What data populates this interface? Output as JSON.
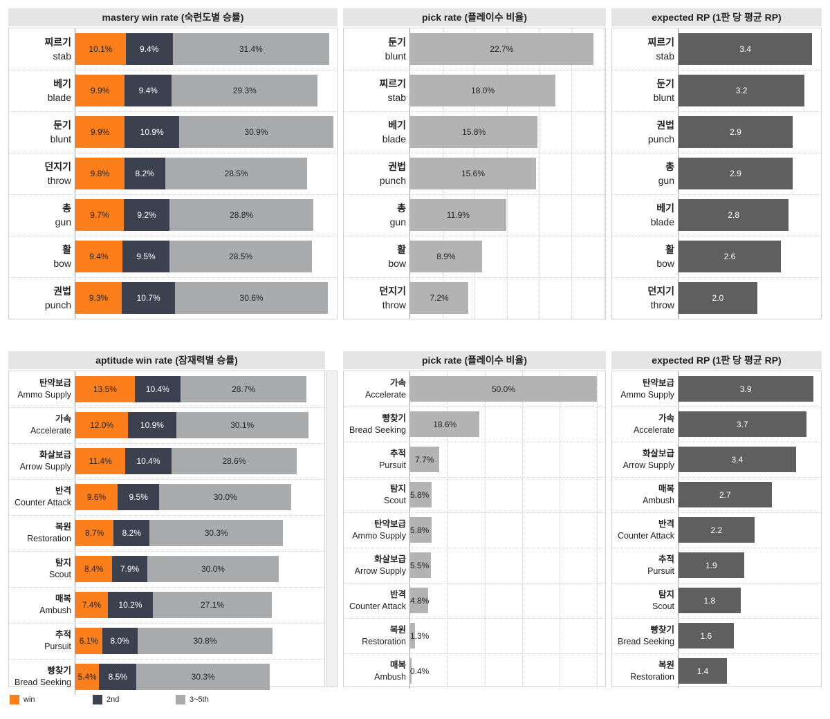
{
  "colors": {
    "win": "#fd7f1c",
    "second": "#3c4150",
    "rest": "#a9abad",
    "pick": "#b3b3b3",
    "rp": "#5f5f5f"
  },
  "legend": [
    {
      "label": "win",
      "color": "#fd7f1c"
    },
    {
      "label": "2nd",
      "color": "#3c4150"
    },
    {
      "label": "3~5th",
      "color": "#a9abad"
    }
  ],
  "panels": {
    "mastery_win": {
      "title": "mastery win rate (숙련도별 승률)",
      "rows": [
        {
          "ko": "찌르기",
          "en": "stab",
          "label_win": "10.1%",
          "label_second": "9.4%",
          "label_rest": "31.4%"
        },
        {
          "ko": "베기",
          "en": "blade",
          "label_win": "9.9%",
          "label_second": "9.4%",
          "label_rest": "29.3%"
        },
        {
          "ko": "둔기",
          "en": "blunt",
          "label_win": "9.9%",
          "label_second": "10.9%",
          "label_rest": "30.9%"
        },
        {
          "ko": "던지기",
          "en": "throw",
          "label_win": "9.8%",
          "label_second": "8.2%",
          "label_rest": "28.5%"
        },
        {
          "ko": "총",
          "en": "gun",
          "label_win": "9.7%",
          "label_second": "9.2%",
          "label_rest": "28.8%"
        },
        {
          "ko": "활",
          "en": "bow",
          "label_win": "9.4%",
          "label_second": "9.5%",
          "label_rest": "28.5%"
        },
        {
          "ko": "권법",
          "en": "punch",
          "label_win": "9.3%",
          "label_second": "10.7%",
          "label_rest": "30.6%"
        }
      ]
    },
    "mastery_pick": {
      "title": "pick rate (플레이수 비율)",
      "rows": [
        {
          "ko": "둔기",
          "en": "blunt",
          "label": "22.7%"
        },
        {
          "ko": "찌르기",
          "en": "stab",
          "label": "18.0%"
        },
        {
          "ko": "베기",
          "en": "blade",
          "label": "15.8%"
        },
        {
          "ko": "권법",
          "en": "punch",
          "label": "15.6%"
        },
        {
          "ko": "총",
          "en": "gun",
          "label": "11.9%"
        },
        {
          "ko": "활",
          "en": "bow",
          "label": "8.9%"
        },
        {
          "ko": "던지기",
          "en": "throw",
          "label": "7.2%"
        }
      ]
    },
    "mastery_rp": {
      "title": "expected RP (1판 당 평균 RP)",
      "rows": [
        {
          "ko": "찌르기",
          "en": "stab",
          "label": "3.4"
        },
        {
          "ko": "둔기",
          "en": "blunt",
          "label": "3.2"
        },
        {
          "ko": "권법",
          "en": "punch",
          "label": "2.9"
        },
        {
          "ko": "총",
          "en": "gun",
          "label": "2.9"
        },
        {
          "ko": "베기",
          "en": "blade",
          "label": "2.8"
        },
        {
          "ko": "활",
          "en": "bow",
          "label": "2.6"
        },
        {
          "ko": "던지기",
          "en": "throw",
          "label": "2.0"
        }
      ]
    },
    "aptitude_win": {
      "title": "aptitude win rate (잠재력별 승률)",
      "rows": [
        {
          "ko": "탄약보급",
          "en": "Ammo Supply",
          "label_win": "13.5%",
          "label_second": "10.4%",
          "label_rest": "28.7%"
        },
        {
          "ko": "가속",
          "en": "Accelerate",
          "label_win": "12.0%",
          "label_second": "10.9%",
          "label_rest": "30.1%"
        },
        {
          "ko": "화살보급",
          "en": "Arrow Supply",
          "label_win": "11.4%",
          "label_second": "10.4%",
          "label_rest": "28.6%"
        },
        {
          "ko": "반격",
          "en": "Counter Attack",
          "label_win": "9.6%",
          "label_second": "9.5%",
          "label_rest": "30.0%"
        },
        {
          "ko": "복원",
          "en": "Restoration",
          "label_win": "8.7%",
          "label_second": "8.2%",
          "label_rest": "30.3%"
        },
        {
          "ko": "탐지",
          "en": "Scout",
          "label_win": "8.4%",
          "label_second": "7.9%",
          "label_rest": "30.0%"
        },
        {
          "ko": "매복",
          "en": "Ambush",
          "label_win": "7.4%",
          "label_second": "10.2%",
          "label_rest": "27.1%"
        },
        {
          "ko": "추적",
          "en": "Pursuit",
          "label_win": "6.1%",
          "label_second": "8.0%",
          "label_rest": "30.8%"
        },
        {
          "ko": "빵찾기",
          "en": "Bread Seeking",
          "label_win": "5.4%",
          "label_second": "8.5%",
          "label_rest": "30.3%"
        }
      ]
    },
    "aptitude_pick": {
      "title": "pick rate (플레이수 비율)",
      "rows": [
        {
          "ko": "가속",
          "en": "Accelerate",
          "label": "50.0%"
        },
        {
          "ko": "빵찾기",
          "en": "Bread Seeking",
          "label": "18.6%"
        },
        {
          "ko": "추적",
          "en": "Pursuit",
          "label": "7.7%"
        },
        {
          "ko": "탐지",
          "en": "Scout",
          "label": "5.8%"
        },
        {
          "ko": "탄약보급",
          "en": "Ammo Supply",
          "label": "5.8%"
        },
        {
          "ko": "화살보급",
          "en": "Arrow Supply",
          "label": "5.5%"
        },
        {
          "ko": "반격",
          "en": "Counter Attack",
          "label": "4.8%"
        },
        {
          "ko": "복원",
          "en": "Restoration",
          "label": "1.3%"
        },
        {
          "ko": "매복",
          "en": "Ambush",
          "label": "0.4%"
        }
      ]
    },
    "aptitude_rp": {
      "title": "expected RP (1판 당 평균 RP)",
      "rows": [
        {
          "ko": "탄약보급",
          "en": "Ammo Supply",
          "label": "3.9"
        },
        {
          "ko": "가속",
          "en": "Accelerate",
          "label": "3.7"
        },
        {
          "ko": "화살보급",
          "en": "Arrow Supply",
          "label": "3.4"
        },
        {
          "ko": "매복",
          "en": "Ambush",
          "label": "2.7"
        },
        {
          "ko": "반격",
          "en": "Counter Attack",
          "label": "2.2"
        },
        {
          "ko": "추적",
          "en": "Pursuit",
          "label": "1.9"
        },
        {
          "ko": "탐지",
          "en": "Scout",
          "label": "1.8"
        },
        {
          "ko": "빵찾기",
          "en": "Bread Seeking",
          "label": "1.6"
        },
        {
          "ko": "복원",
          "en": "Restoration",
          "label": "1.4"
        }
      ]
    }
  },
  "chart_data": [
    {
      "type": "bar",
      "title": "mastery win rate (숙련도별 승률)",
      "stacked": true,
      "categories": [
        "찌르기 stab",
        "베기 blade",
        "둔기 blunt",
        "던지기 throw",
        "총 gun",
        "활 bow",
        "권법 punch"
      ],
      "series": [
        {
          "name": "win",
          "values": [
            10.1,
            9.9,
            9.9,
            9.8,
            9.7,
            9.4,
            9.3
          ]
        },
        {
          "name": "2nd",
          "values": [
            9.4,
            9.4,
            10.9,
            8.2,
            9.2,
            9.5,
            10.7
          ]
        },
        {
          "name": "3~5th",
          "values": [
            31.4,
            29.3,
            30.9,
            28.5,
            28.8,
            28.5,
            30.6
          ]
        }
      ],
      "xlim": [
        0,
        52
      ]
    },
    {
      "type": "bar",
      "title": "pick rate (플레이수 비율)",
      "categories": [
        "둔기 blunt",
        "찌르기 stab",
        "베기 blade",
        "권법 punch",
        "총 gun",
        "활 bow",
        "던지기 throw"
      ],
      "values": [
        22.7,
        18.0,
        15.8,
        15.6,
        11.9,
        8.9,
        7.2
      ],
      "xlim": [
        0,
        24
      ]
    },
    {
      "type": "bar",
      "title": "expected RP (1판 당 평균 RP)",
      "categories": [
        "찌르기 stab",
        "둔기 blunt",
        "권법 punch",
        "총 gun",
        "베기 blade",
        "활 bow",
        "던지기 throw"
      ],
      "values": [
        3.4,
        3.2,
        2.9,
        2.9,
        2.8,
        2.6,
        2.0
      ],
      "xlim": [
        0,
        3.55
      ]
    },
    {
      "type": "bar",
      "title": "aptitude win rate (잠재력별 승률)",
      "stacked": true,
      "categories": [
        "탄약보급 Ammo Supply",
        "가속 Accelerate",
        "화살보급 Arrow Supply",
        "반격 Counter Attack",
        "복원 Restoration",
        "탐지 Scout",
        "매복 Ambush",
        "추적 Pursuit",
        "빵찾기 Bread Seeking"
      ],
      "series": [
        {
          "name": "win",
          "values": [
            13.5,
            12.0,
            11.4,
            9.6,
            8.7,
            8.4,
            7.4,
            6.1,
            5.4
          ]
        },
        {
          "name": "2nd",
          "values": [
            10.4,
            10.9,
            10.4,
            9.5,
            8.2,
            7.9,
            10.2,
            8.0,
            8.5
          ]
        },
        {
          "name": "3~5th",
          "values": [
            28.7,
            30.1,
            28.6,
            30.0,
            30.3,
            30.0,
            27.1,
            30.8,
            30.3
          ]
        }
      ],
      "xlim": [
        0,
        56
      ]
    },
    {
      "type": "bar",
      "title": "pick rate (플레이수 비율)",
      "categories": [
        "가속 Accelerate",
        "빵찾기 Bread Seeking",
        "추적 Pursuit",
        "탐지 Scout",
        "탄약보급 Ammo Supply",
        "화살보급 Arrow Supply",
        "반격 Counter Attack",
        "복원 Restoration",
        "매복 Ambush"
      ],
      "values": [
        50.0,
        18.6,
        7.7,
        5.8,
        5.8,
        5.5,
        4.8,
        1.3,
        0.4
      ],
      "xlim": [
        0,
        50
      ]
    },
    {
      "type": "bar",
      "title": "expected RP (1판 당 평균 RP)",
      "categories": [
        "탄약보급 Ammo Supply",
        "가속 Accelerate",
        "화살보급 Arrow Supply",
        "매복 Ambush",
        "반격 Counter Attack",
        "추적 Pursuit",
        "탐지 Scout",
        "빵찾기 Bread Seeking",
        "복원 Restoration"
      ],
      "values": [
        3.9,
        3.7,
        3.4,
        2.7,
        2.2,
        1.9,
        1.8,
        1.6,
        1.4
      ],
      "xlim": [
        0,
        4.05
      ]
    }
  ]
}
